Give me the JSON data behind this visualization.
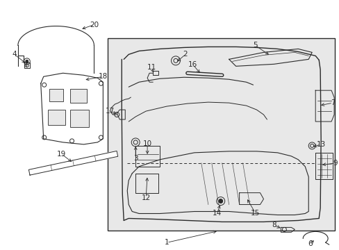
{
  "bg_color": "#ffffff",
  "line_color": "#2a2a2a",
  "box_bg": "#e0e0e0",
  "figsize": [
    4.89,
    3.6
  ],
  "dpi": 100,
  "label_fs": 7.5
}
